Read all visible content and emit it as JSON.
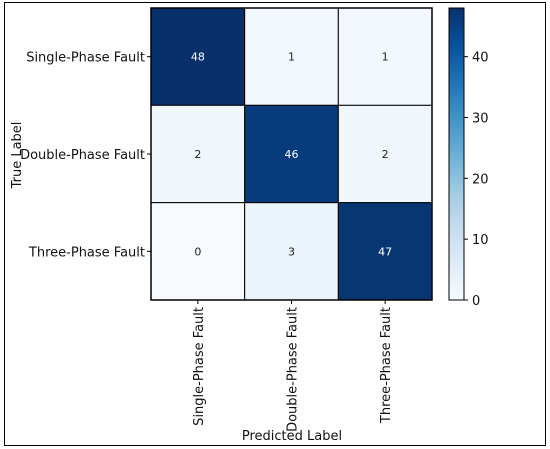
{
  "chart_data": {
    "type": "heatmap",
    "title": "",
    "xlabel": "Predicted Label",
    "ylabel": "True Label",
    "x_categories": [
      "Single-Phase Fault",
      "Double-Phase Fault",
      "Three-Phase Fault"
    ],
    "y_categories": [
      "Single-Phase Fault",
      "Double-Phase Fault",
      "Three-Phase Fault"
    ],
    "values": [
      [
        48,
        1,
        1
      ],
      [
        2,
        46,
        2
      ],
      [
        0,
        3,
        47
      ]
    ],
    "colormap": "Blues",
    "colorbar": {
      "range": [
        0,
        48
      ],
      "ticks": [
        0,
        10,
        20,
        30,
        40
      ]
    },
    "grid": true
  }
}
